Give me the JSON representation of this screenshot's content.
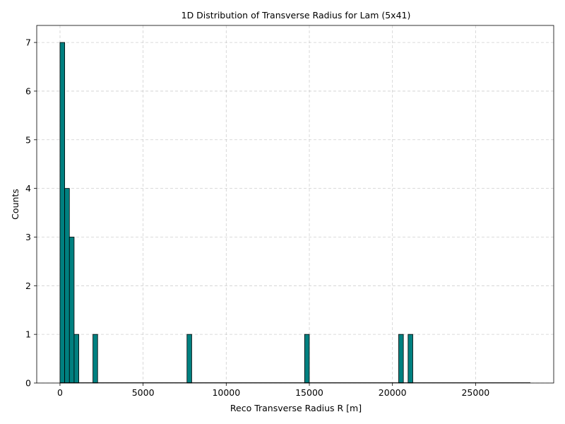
{
  "chart_data": {
    "type": "bar",
    "title": "1D Distribution of Transverse Radius for Lam (5x41)",
    "xlabel": "Reco Transverse Radius R [m]",
    "ylabel": "Counts",
    "xlim": [
      -1400,
      29700
    ],
    "ylim": [
      0,
      7.35
    ],
    "xticks": [
      0,
      5000,
      10000,
      15000,
      20000,
      25000
    ],
    "yticks": [
      0,
      1,
      2,
      3,
      4,
      5,
      6,
      7
    ],
    "grid": true,
    "bar_color": "#008080",
    "bin_width": 283,
    "bins": [
      {
        "x0": 0,
        "count": 7
      },
      {
        "x0": 283,
        "count": 4
      },
      {
        "x0": 566,
        "count": 3
      },
      {
        "x0": 849,
        "count": 1
      },
      {
        "x0": 1132,
        "count": 0
      },
      {
        "x0": 1981,
        "count": 1
      },
      {
        "x0": 2264,
        "count": 0
      },
      {
        "x0": 7640,
        "count": 1
      },
      {
        "x0": 7923,
        "count": 0
      },
      {
        "x0": 14715,
        "count": 1
      },
      {
        "x0": 14998,
        "count": 0
      },
      {
        "x0": 20374,
        "count": 1
      },
      {
        "x0": 20657,
        "count": 0
      },
      {
        "x0": 20940,
        "count": 1
      },
      {
        "x0": 21223,
        "count": 0
      }
    ],
    "range_max": 28300
  }
}
